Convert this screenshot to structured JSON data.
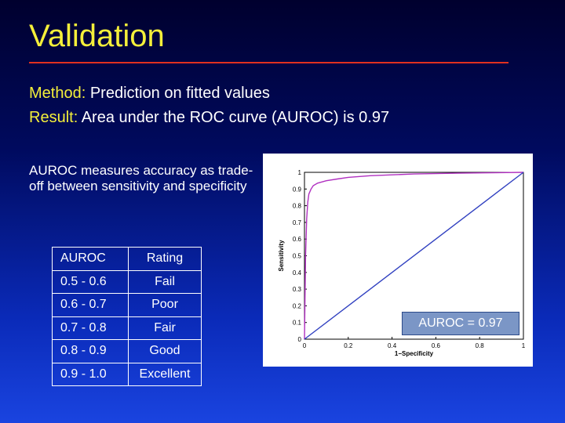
{
  "slide": {
    "title": "Validation",
    "method_label": "Method:",
    "method_text": " Prediction on fitted values",
    "result_label": "Result:",
    "result_text": " Area under the ROC curve (AUROC) is 0.97",
    "description": "AUROC measures accuracy as trade-off between sensitivity and specificity",
    "auroc_label": "AUROC = 0.97"
  },
  "table": {
    "header": [
      "AUROC",
      "Rating"
    ],
    "rows": [
      [
        "0.5 - 0.6",
        "Fail"
      ],
      [
        "0.6 - 0.7",
        "Poor"
      ],
      [
        "0.7 - 0.8",
        "Fair"
      ],
      [
        "0.8 - 0.9",
        "Good"
      ],
      [
        "0.9 - 1.0",
        "Excellent"
      ]
    ]
  },
  "chart_data": {
    "type": "line",
    "xlabel": "1−Specificity",
    "ylabel": "Sensitivity",
    "xlim": [
      0,
      1
    ],
    "ylim": [
      0,
      1
    ],
    "xticks": [
      "0",
      "0.2",
      "0.4",
      "0.6",
      "0.8",
      "1"
    ],
    "yticks": [
      "0",
      "0.1",
      "0.2",
      "0.3",
      "0.4",
      "0.5",
      "0.6",
      "0.7",
      "0.8",
      "0.9",
      "1"
    ],
    "series": [
      {
        "color": "#b030c0",
        "x": [
          0,
          0.005,
          0.01,
          0.015,
          0.02,
          0.03,
          0.04,
          0.06,
          0.1,
          0.15,
          0.2,
          0.3,
          0.5,
          0.7,
          1.0
        ],
        "y": [
          0,
          0.5,
          0.72,
          0.82,
          0.87,
          0.9,
          0.92,
          0.935,
          0.95,
          0.96,
          0.97,
          0.98,
          0.99,
          0.995,
          1.0
        ]
      },
      {
        "color": "#3040c0",
        "x": [
          0,
          1
        ],
        "y": [
          0,
          1
        ]
      }
    ]
  }
}
